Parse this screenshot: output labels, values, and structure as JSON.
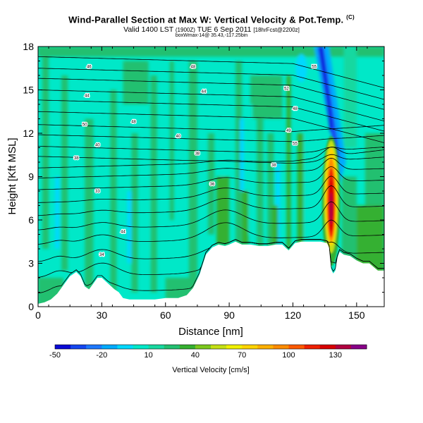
{
  "header": {
    "title": "Wind-Parallel Section at Max W: Vertical Velocity & Pot.Temp.",
    "title_mark": "(C)",
    "subtitle_main": "Valid 1400 LST",
    "subtitle_utc": "(1900Z)",
    "subtitle_date": "TUE 6 Sep 2011",
    "subtitle_run": "[18hrFcst@2200z]",
    "id_line": "boxWmax-14@ 35.43,-117.25bin"
  },
  "chart_data": {
    "type": "heatmap",
    "title": "Wind-Parallel Section at Max W: Vertical Velocity & Pot.Temp.",
    "xlabel": "Distance [nm]",
    "ylabel": "Height [Kft MSL]",
    "xlim": [
      0,
      163
    ],
    "ylim": [
      0,
      18
    ],
    "x_ticks": [
      0,
      30,
      60,
      90,
      120,
      150
    ],
    "y_ticks": [
      0,
      3,
      6,
      9,
      12,
      15,
      18
    ],
    "terrain_profile": {
      "x": [
        0,
        3,
        6,
        9,
        12,
        15,
        18,
        20,
        22,
        24,
        26,
        28,
        30,
        33,
        36,
        38,
        40,
        43,
        46,
        50,
        55,
        60,
        66,
        70,
        73,
        76,
        79,
        82,
        85,
        88,
        90,
        93,
        96,
        100,
        104,
        108,
        112,
        115,
        118,
        121,
        124,
        127,
        130,
        133,
        136,
        137,
        138,
        139,
        140,
        141,
        142,
        144,
        147,
        150,
        153,
        156,
        160,
        163
      ],
      "height_kft": [
        0.2,
        0.3,
        0.5,
        0.9,
        1.5,
        2.1,
        2.4,
        2.1,
        1.4,
        1.2,
        1.6,
        2.0,
        2.0,
        1.6,
        1.2,
        1.0,
        0.6,
        0.5,
        0.5,
        0.5,
        0.5,
        0.6,
        0.6,
        0.8,
        1.3,
        2.2,
        3.6,
        4.1,
        4.3,
        4.2,
        4.3,
        4.5,
        4.3,
        4.3,
        4.2,
        4.2,
        4.3,
        4.3,
        3.9,
        4.4,
        4.5,
        4.5,
        4.5,
        4.5,
        4.4,
        4.1,
        2.6,
        2.3,
        2.5,
        3.4,
        3.8,
        3.6,
        3.5,
        3.2,
        3.0,
        3.0,
        2.5,
        2.5
      ]
    },
    "isentropes": {
      "label": "Potential temperature (K)",
      "heights_left_kft": [
        0.9,
        2.0,
        3.1,
        4.3,
        5.3,
        6.3,
        7.2,
        8.1,
        8.9,
        9.6,
        10.4,
        11.1,
        11.9,
        12.6,
        13.5,
        14.3,
        15.0,
        15.8,
        16.5,
        17.3
      ],
      "labels": [
        {
          "text": "48",
          "x": 45,
          "y": 12.8
        },
        {
          "text": "40",
          "x": 66,
          "y": 11.8
        },
        {
          "text": "38",
          "x": 75,
          "y": 10.6
        },
        {
          "text": "36",
          "x": 82,
          "y": 8.5
        },
        {
          "text": "38",
          "x": 18,
          "y": 10.3
        },
        {
          "text": "33",
          "x": 28,
          "y": 8.0
        },
        {
          "text": "44",
          "x": 40,
          "y": 5.2
        },
        {
          "text": "34",
          "x": 30,
          "y": 3.6
        },
        {
          "text": "50",
          "x": 22,
          "y": 12.6
        },
        {
          "text": "44",
          "x": 23,
          "y": 14.6
        },
        {
          "text": "46",
          "x": 24,
          "y": 16.6
        },
        {
          "text": "48",
          "x": 73,
          "y": 16.6
        },
        {
          "text": "44",
          "x": 78,
          "y": 14.9
        },
        {
          "text": "40",
          "x": 28,
          "y": 11.2
        },
        {
          "text": "52",
          "x": 117,
          "y": 15.1
        },
        {
          "text": "48",
          "x": 121,
          "y": 13.7
        },
        {
          "text": "49",
          "x": 118,
          "y": 12.2
        },
        {
          "text": "55",
          "x": 121,
          "y": 11.3
        },
        {
          "text": "38",
          "x": 111,
          "y": 9.8
        },
        {
          "text": "55",
          "x": 130,
          "y": 16.6
        }
      ]
    },
    "vertical_velocity_field": {
      "units": "cm/s",
      "background_value": 0,
      "features": [
        {
          "name": "updraft core",
          "x_center": 138,
          "z_range": [
            4.5,
            13.5
          ],
          "peak": 130
        },
        {
          "name": "downdraft band",
          "x_range": [
            130,
            150
          ],
          "z_range": [
            9,
            18
          ],
          "min": -50
        },
        {
          "name": "lee wave updraft",
          "x_center": 88,
          "z_range": [
            4.3,
            9
          ],
          "peak": 30
        }
      ]
    },
    "colorbar": {
      "label": "Vertical Velocity [cm/s]",
      "tick_labels": [
        "-50",
        "-20",
        "10",
        "40",
        "70",
        "100",
        "130"
      ],
      "tick_values": [
        -50,
        -20,
        10,
        40,
        70,
        100,
        130
      ],
      "levels": [
        -50,
        -40,
        -30,
        -20,
        -10,
        0,
        10,
        20,
        30,
        40,
        50,
        60,
        70,
        80,
        90,
        100,
        110,
        120,
        130,
        140
      ],
      "colors": [
        "#0a0ad6",
        "#1446f0",
        "#1e78ff",
        "#00aaff",
        "#00d8ff",
        "#00e8c8",
        "#18d8a0",
        "#22c070",
        "#35b030",
        "#7cc81c",
        "#c4e014",
        "#f0f000",
        "#ffd400",
        "#ffb000",
        "#ff8c00",
        "#ff5a00",
        "#ee2000",
        "#d80000",
        "#b00040",
        "#880088"
      ]
    }
  }
}
